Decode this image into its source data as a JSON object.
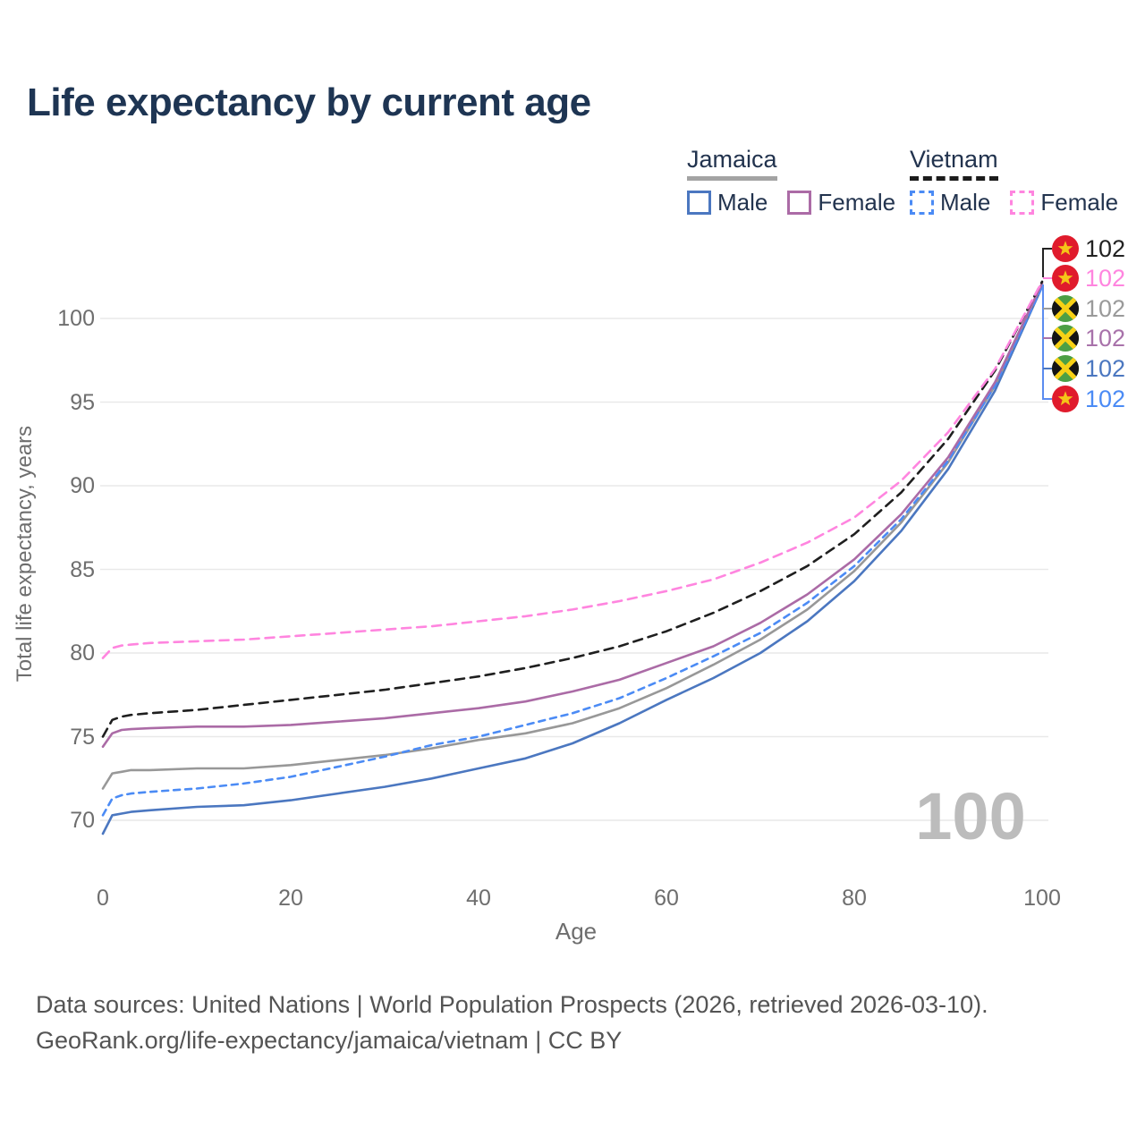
{
  "title": "Life expectancy by current age",
  "legend": {
    "groups": [
      {
        "country": "Jamaica",
        "line_style": "solid",
        "underline_color": "#a3a3a3",
        "items": [
          {
            "label": "Male",
            "color": "#4b77c0"
          },
          {
            "label": "Female",
            "color": "#ab6ba6"
          }
        ]
      },
      {
        "country": "Vietnam",
        "line_style": "dashed",
        "underline_color": "#1c1c1c",
        "items": [
          {
            "label": "Male",
            "color": "#4b8bf5"
          },
          {
            "label": "Female",
            "color": "#ff85df"
          }
        ]
      }
    ]
  },
  "watermark": "100",
  "end_labels": [
    {
      "flag": "vietnam",
      "value": "102",
      "color": "#222222"
    },
    {
      "flag": "vietnam",
      "value": "102",
      "color": "#ff85df"
    },
    {
      "flag": "jamaica",
      "value": "102",
      "color": "#9a9a9a"
    },
    {
      "flag": "jamaica",
      "value": "102",
      "color": "#a872aa"
    },
    {
      "flag": "jamaica",
      "value": "102",
      "color": "#4b77c0"
    },
    {
      "flag": "vietnam",
      "value": "102",
      "color": "#4b8bf5"
    }
  ],
  "chart_data": {
    "type": "line",
    "title": "Life expectancy by current age",
    "xlabel": "Age",
    "ylabel": "Total life expectancy, years",
    "x_ticks": [
      0,
      20,
      40,
      60,
      80,
      100
    ],
    "y_ticks": [
      70,
      75,
      80,
      85,
      90,
      95,
      100
    ],
    "xlim": [
      0,
      100
    ],
    "ylim": [
      69,
      102.5
    ],
    "grid": "horizontal",
    "legend_position": "top-right",
    "ages": [
      0,
      1,
      2,
      3,
      5,
      10,
      15,
      20,
      25,
      30,
      35,
      40,
      45,
      50,
      55,
      60,
      65,
      70,
      75,
      80,
      85,
      90,
      95,
      100
    ],
    "series": [
      {
        "name": "Jamaica Male",
        "country": "Jamaica",
        "sex": "Male",
        "color": "#4b77c0",
        "style": "solid",
        "values": [
          69.2,
          70.3,
          70.4,
          70.5,
          70.6,
          70.8,
          70.9,
          71.2,
          71.6,
          72.0,
          72.5,
          73.1,
          73.7,
          74.6,
          75.8,
          77.2,
          78.5,
          80.0,
          81.9,
          84.3,
          87.3,
          91.0,
          95.7,
          101.9
        ]
      },
      {
        "name": "Jamaica Both sexes",
        "country": "Jamaica",
        "sex": "Both",
        "color": "#989898",
        "style": "solid",
        "values": [
          71.9,
          72.8,
          72.9,
          73.0,
          73.0,
          73.1,
          73.1,
          73.3,
          73.6,
          73.9,
          74.3,
          74.8,
          75.2,
          75.8,
          76.7,
          77.9,
          79.3,
          80.8,
          82.6,
          84.9,
          87.8,
          91.4,
          96.0,
          102.1
        ]
      },
      {
        "name": "Vietnam Male",
        "country": "Vietnam",
        "sex": "Male",
        "color": "#4b8bf5",
        "style": "dashed",
        "values": [
          70.3,
          71.3,
          71.5,
          71.6,
          71.7,
          71.9,
          72.2,
          72.6,
          73.2,
          73.8,
          74.5,
          75.0,
          75.7,
          76.4,
          77.3,
          78.5,
          79.8,
          81.2,
          83.0,
          85.2,
          88.0,
          91.5,
          96.0,
          101.9
        ]
      },
      {
        "name": "Jamaica Female",
        "country": "Jamaica",
        "sex": "Female",
        "color": "#ab6ba6",
        "style": "solid",
        "values": [
          74.4,
          75.2,
          75.4,
          75.45,
          75.5,
          75.6,
          75.6,
          75.7,
          75.9,
          76.1,
          76.4,
          76.7,
          77.1,
          77.7,
          78.4,
          79.4,
          80.4,
          81.8,
          83.5,
          85.6,
          88.3,
          91.7,
          96.2,
          102.1
        ]
      },
      {
        "name": "Vietnam Both sexes",
        "country": "Vietnam",
        "sex": "Both",
        "color": "#1f1f1f",
        "style": "dashed",
        "values": [
          75.0,
          76.0,
          76.2,
          76.3,
          76.4,
          76.6,
          76.9,
          77.2,
          77.5,
          77.8,
          78.2,
          78.6,
          79.1,
          79.7,
          80.4,
          81.3,
          82.4,
          83.7,
          85.2,
          87.1,
          89.6,
          92.8,
          96.9,
          102.2
        ]
      },
      {
        "name": "Vietnam Female",
        "country": "Vietnam",
        "sex": "Female",
        "color": "#ff85df",
        "style": "dashed",
        "values": [
          79.7,
          80.3,
          80.45,
          80.5,
          80.6,
          80.7,
          80.8,
          81.0,
          81.2,
          81.4,
          81.6,
          81.9,
          82.2,
          82.6,
          83.1,
          83.7,
          84.4,
          85.4,
          86.6,
          88.1,
          90.3,
          93.2,
          97.0,
          102.2
        ]
      }
    ]
  },
  "footer": {
    "line1": "Data sources: United Nations | World Population Prospects (2026, retrieved 2026-03-10).",
    "line2": "GeoRank.org/life-expectancy/jamaica/vietnam | CC BY"
  }
}
